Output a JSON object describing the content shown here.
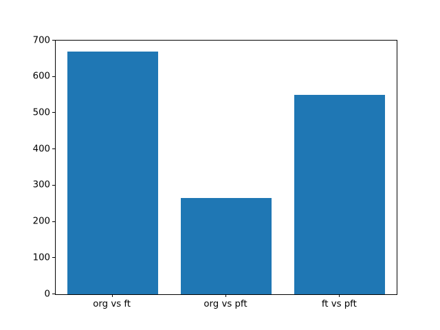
{
  "figure": {
    "background_color": "#ffffff",
    "spine_color": "#000000",
    "tick_color": "#000000",
    "text_color": "#000000"
  },
  "chart_data": {
    "type": "bar",
    "title": "",
    "xlabel": "",
    "ylabel": "",
    "categories": [
      "org vs ft",
      "org vs pft",
      "ft vs pft"
    ],
    "values": [
      670,
      265,
      550
    ],
    "bar_color": "#1f77b4",
    "bar_width_fraction": 0.8,
    "ylim": [
      0,
      700
    ],
    "yticks": [
      0,
      100,
      200,
      300,
      400,
      500,
      600,
      700
    ],
    "grid": false,
    "legend_position": "none"
  }
}
